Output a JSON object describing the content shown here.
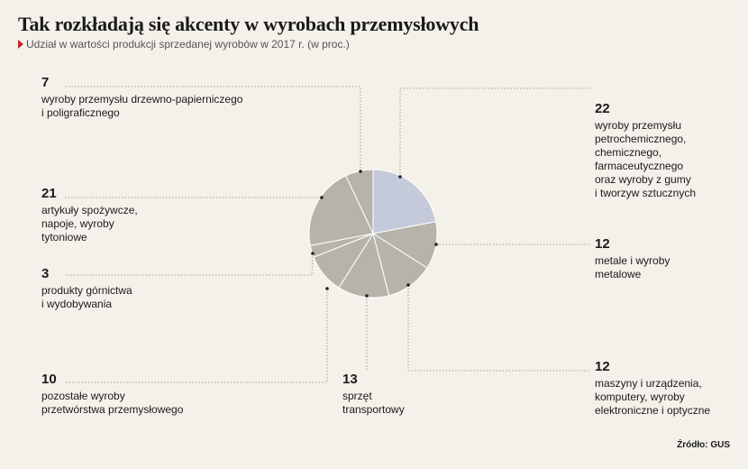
{
  "title": "Tak rozkładają się akcenty w wyrobach przemysłowych",
  "subtitle": "Udział w wartości produkcji sprzedanej wyrobów w 2017 r. (w proc.)",
  "source": "Źródło: GUS",
  "colors": {
    "highlight": "#c5cadb",
    "slice": "#b6b4aa",
    "edge": "#ffffff",
    "leader": "#888888",
    "accent": "#d21f26"
  },
  "chart_data": {
    "type": "pie",
    "title": "Tak rozkładają się akcenty w wyrobach przemysłowych",
    "subtitle": "Udział w wartości produkcji sprzedanej wyrobów w 2017 r. (w proc.)",
    "unit": "proc.",
    "slices": [
      {
        "value": 22,
        "label": "wyroby przemysłu\npetrochemicznego,\nchemicznego,\nfarmaceutycznego\noraz wyroby z gumy\ni tworzyw sztucznych",
        "highlight": true
      },
      {
        "value": 12,
        "label": "metale i wyroby\nmetalowe"
      },
      {
        "value": 12,
        "label": "maszyny i urządzenia,\nkomputery, wyroby\nelektroniczne i optyczne"
      },
      {
        "value": 13,
        "label": "sprzęt\ntransportowy"
      },
      {
        "value": 10,
        "label": "pozostałe wyroby\nprzetwórstwa przemysłowego"
      },
      {
        "value": 3,
        "label": "produkty górnictwa\ni wydobywania"
      },
      {
        "value": 21,
        "label": "artykuły spożywcze,\nnapoje, wyroby\ntytoniowe"
      },
      {
        "value": 7,
        "label": "wyroby przemysłu drzewno-papierniczego\ni poligraficznego"
      }
    ]
  }
}
